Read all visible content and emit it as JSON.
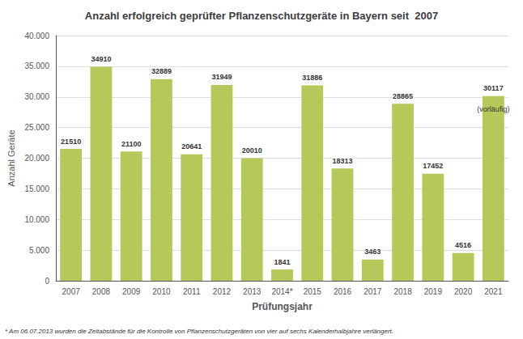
{
  "chart_data": {
    "type": "bar",
    "title": "Anzahl erfolgreich geprüfter Pflanzenschutzgeräte in Bayern seit  2007",
    "xlabel": "Prüfungsjahr",
    "ylabel": "Anzahl Geräte",
    "footnote": "* Am 06.07.2013 wurden die Zeitabstände für die Kontrolle von Pflanzenschutzgeräten von vier auf sechs Kalenderhalbjahre verlängert.",
    "categories": [
      "2007",
      "2008",
      "2009",
      "2010",
      "2011",
      "2012",
      "2013",
      "2014*",
      "2015",
      "2016",
      "2017",
      "2018",
      "2019",
      "2020",
      "2021"
    ],
    "values": [
      21510,
      34910,
      21100,
      32889,
      20641,
      31949,
      20010,
      1841,
      31886,
      18313,
      3463,
      28865,
      17452,
      4516,
      30117
    ],
    "color": "#b5c95a",
    "ylim": [
      0,
      40000
    ],
    "yticks": [
      0,
      {
        "value": 5000,
        "label": "5.000"
      },
      {
        "value": 10000,
        "label": "10.000"
      },
      {
        "value": 15000,
        "label": "15.000"
      },
      {
        "value": 20000,
        "label": "20.000"
      },
      {
        "value": 25000,
        "label": "25.000"
      },
      {
        "value": 30000,
        "label": "30.000"
      },
      {
        "value": 35000,
        "label": "35.000"
      },
      {
        "value": 40000,
        "label": "40.000"
      }
    ],
    "grid": true,
    "data_labels": true,
    "annotations": [
      {
        "category": "2021",
        "text": "(vorläufig)"
      }
    ]
  }
}
